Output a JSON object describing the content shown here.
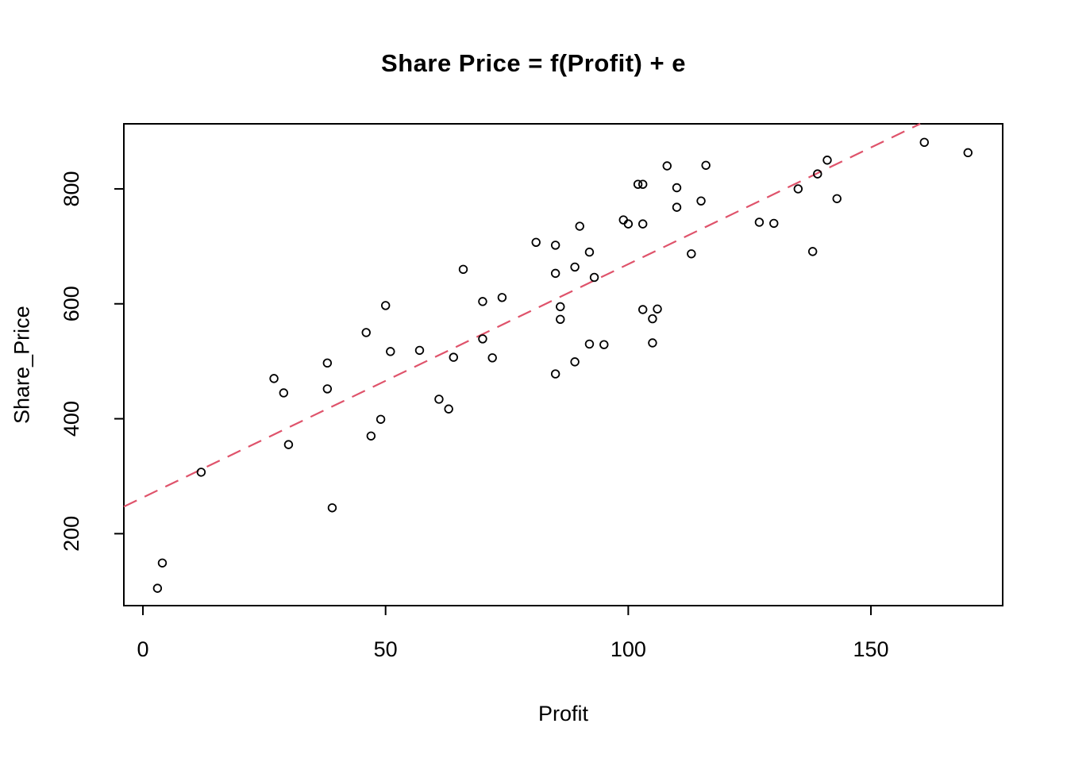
{
  "title": "Share Price = f(Profit) + e",
  "chart_data": {
    "type": "scatter",
    "title": "Share Price = f(Profit) + e",
    "xlabel": "Profit",
    "ylabel": "Share_Price",
    "x_ticks": [
      0,
      50,
      100,
      150
    ],
    "y_ticks": [
      200,
      400,
      600,
      800
    ],
    "xlim": [
      -3.93,
      177.15
    ],
    "ylim": [
      74.8,
      913.2
    ],
    "grid": false,
    "legend": "none",
    "point_style": "open-circle",
    "point_color": "#000000",
    "background": "#ffffff",
    "points": [
      [
        3,
        105
      ],
      [
        4,
        149
      ],
      [
        12,
        307
      ],
      [
        27,
        470
      ],
      [
        29,
        445
      ],
      [
        30,
        355
      ],
      [
        38,
        497
      ],
      [
        38,
        452
      ],
      [
        39,
        245
      ],
      [
        46,
        550
      ],
      [
        47,
        370
      ],
      [
        49,
        399
      ],
      [
        50,
        597
      ],
      [
        51,
        517
      ],
      [
        57,
        519
      ],
      [
        61,
        434
      ],
      [
        63,
        417
      ],
      [
        64,
        507
      ],
      [
        66,
        660
      ],
      [
        70,
        604
      ],
      [
        70,
        539
      ],
      [
        72,
        506
      ],
      [
        74,
        611
      ],
      [
        81,
        707
      ],
      [
        85,
        702
      ],
      [
        85,
        653
      ],
      [
        85,
        478
      ],
      [
        86,
        595
      ],
      [
        86,
        573
      ],
      [
        89,
        664
      ],
      [
        89,
        499
      ],
      [
        90,
        735
      ],
      [
        92,
        690
      ],
      [
        92,
        530
      ],
      [
        93,
        646
      ],
      [
        95,
        529
      ],
      [
        99,
        746
      ],
      [
        100,
        739
      ],
      [
        102,
        808
      ],
      [
        103,
        808
      ],
      [
        103,
        739
      ],
      [
        103,
        590
      ],
      [
        105,
        574
      ],
      [
        105,
        532
      ],
      [
        106,
        591
      ],
      [
        108,
        840
      ],
      [
        110,
        802
      ],
      [
        110,
        768
      ],
      [
        113,
        687
      ],
      [
        115,
        779
      ],
      [
        116,
        841
      ],
      [
        127,
        742
      ],
      [
        130,
        740
      ],
      [
        135,
        800
      ],
      [
        138,
        691
      ],
      [
        139,
        826
      ],
      [
        141,
        850
      ],
      [
        143,
        783
      ],
      [
        161,
        881
      ],
      [
        170,
        863
      ]
    ],
    "trend_line": {
      "style": "dashed",
      "intercept": 263,
      "slope": 4.06,
      "color": "#DF536B"
    }
  }
}
